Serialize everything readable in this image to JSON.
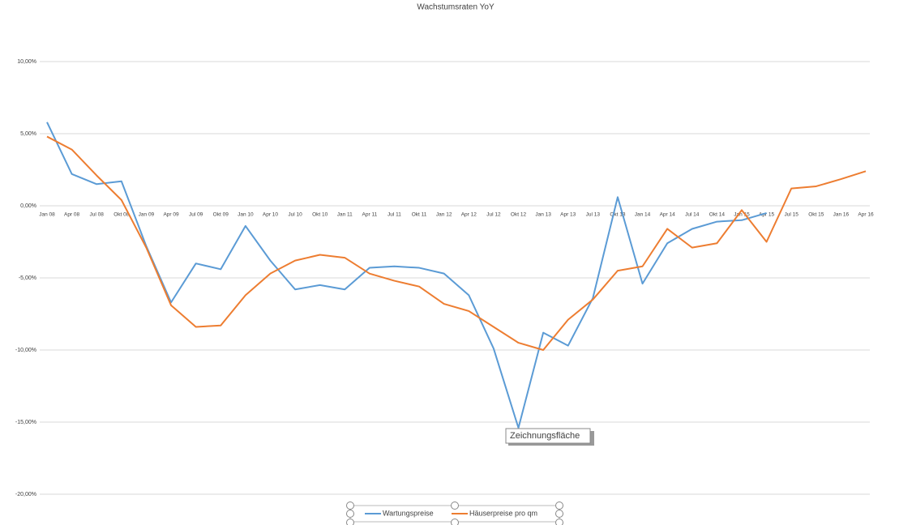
{
  "chart_data": {
    "type": "line",
    "title": "Wachstumsraten YoY",
    "categories": [
      "Jan 08",
      "Apr 08",
      "Jul 08",
      "Okt 08",
      "Jan 09",
      "Apr 09",
      "Jul 09",
      "Okt 09",
      "Jan 10",
      "Apr 10",
      "Jul 10",
      "Okt 10",
      "Jan 11",
      "Apr 11",
      "Jul 11",
      "Okt 11",
      "Jan 12",
      "Apr 12",
      "Jul 12",
      "Okt 12",
      "Jan 13",
      "Apr 13",
      "Jul 13",
      "Okt 13",
      "Jan 14",
      "Apr 14",
      "Jul 14",
      "Okt 14",
      "Jan 15",
      "Apr 15",
      "Jul 15",
      "Okt 15",
      "Jan 16",
      "Apr 16"
    ],
    "series": [
      {
        "name": "Wartungspreise",
        "color": "#5b9bd5",
        "values": [
          5.8,
          2.2,
          1.5,
          1.7,
          -2.8,
          -6.7,
          -4.0,
          -4.4,
          -1.4,
          -3.8,
          -5.8,
          -5.5,
          -5.8,
          -4.3,
          -4.2,
          -4.3,
          -4.7,
          -6.2,
          -9.9,
          -15.4,
          -8.8,
          -9.7,
          -6.4,
          0.6,
          -5.4,
          -2.6,
          -1.6,
          -1.1,
          -1.0,
          -0.5,
          null,
          null,
          null,
          null
        ]
      },
      {
        "name": "Häuserpreise pro qm",
        "color": "#ed7d31",
        "values": [
          4.8,
          3.9,
          2.1,
          0.4,
          -2.9,
          -6.9,
          -8.4,
          -8.3,
          -6.2,
          -4.7,
          -3.8,
          -3.4,
          -3.6,
          -4.7,
          -5.2,
          -5.6,
          -6.8,
          -7.3,
          -8.4,
          -9.5,
          -10.0,
          -7.9,
          -6.5,
          -4.5,
          -4.2,
          -1.6,
          -2.9,
          -2.6,
          -0.3,
          -2.5,
          1.2,
          1.35,
          1.85,
          2.4
        ]
      }
    ],
    "ylim": [
      -20,
      10
    ],
    "yticks": [
      {
        "value": -20,
        "label": "-20,00%"
      },
      {
        "value": -15,
        "label": "-15,00%"
      },
      {
        "value": -10,
        "label": "-10,00%"
      },
      {
        "value": -5,
        "label": "-5,00%"
      },
      {
        "value": 0,
        "label": "0,00%"
      },
      {
        "value": 5,
        "label": "5,00%"
      },
      {
        "value": 10,
        "label": "10,00%"
      }
    ],
    "grid": true,
    "legend": "bottom",
    "tooltip": "Zeichnungsfläche"
  }
}
